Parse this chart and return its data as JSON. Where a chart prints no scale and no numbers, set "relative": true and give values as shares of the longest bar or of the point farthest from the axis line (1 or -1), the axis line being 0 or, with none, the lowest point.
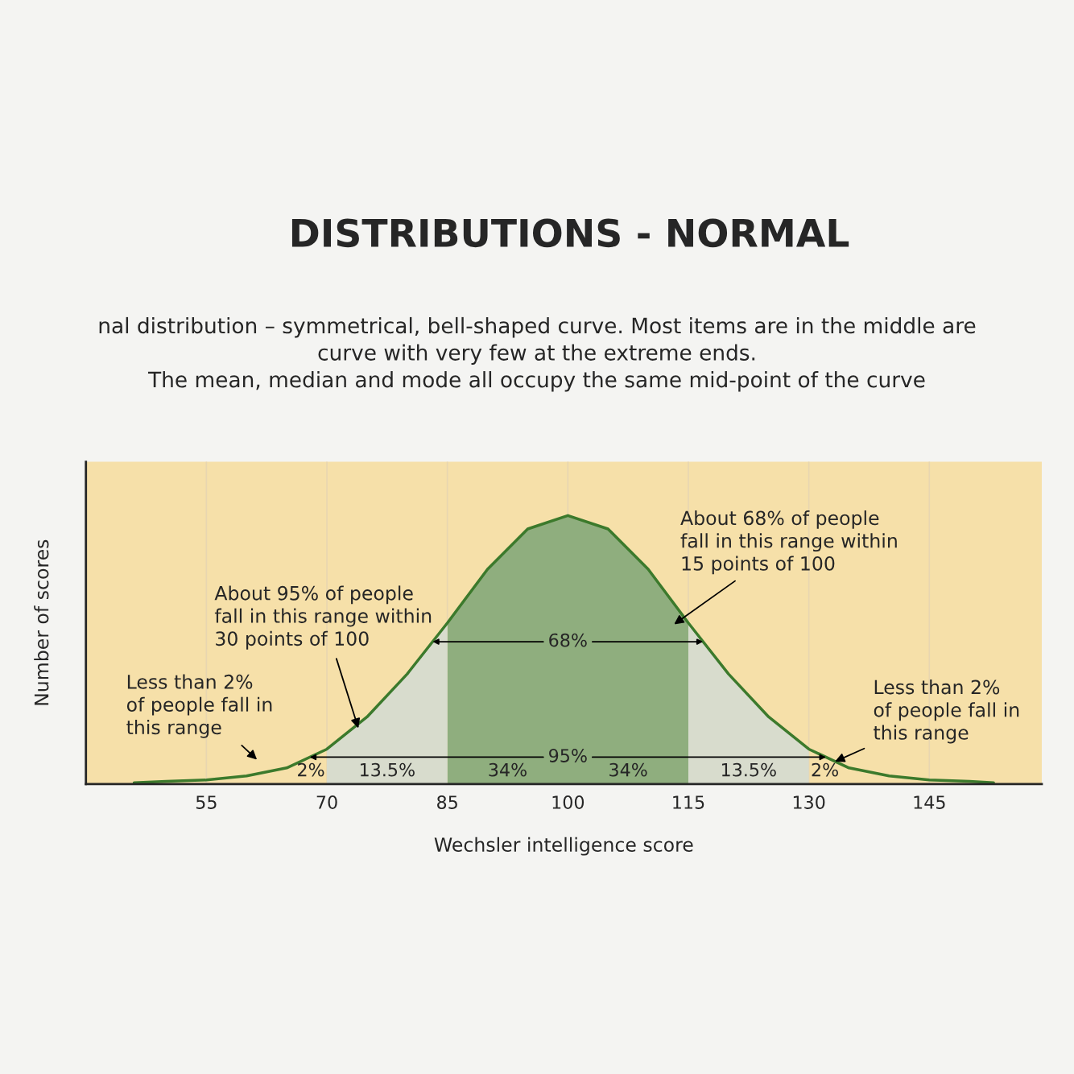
{
  "chart_data": {
    "type": "line",
    "title": "DISTRIBUTIONS - NORMAL",
    "subtitle": "nal distribution – symmetrical, bell-shaped curve. Most items are in the middle are\ncurve with very few at the extreme ends.\nThe mean, median and mode all occupy the same mid-point of the curve",
    "xlabel": "Wechsler intelligence score",
    "ylabel": "Number of scores",
    "relative": true,
    "xlim": [
      40,
      159
    ],
    "xticks": [
      55,
      70,
      85,
      100,
      115,
      130,
      145
    ],
    "grid": "x",
    "series": [
      {
        "type": "area",
        "color": "#8fae7e",
        "x": [
          85,
          90,
          95,
          100,
          105,
          110,
          115
        ],
        "values": [
          0.6,
          0.8,
          0.95,
          1,
          0.95,
          0.8,
          0.6
        ]
      },
      {
        "type": "area",
        "color": "#d8dccd",
        "x": [
          70,
          75,
          80,
          85
        ],
        "values": [
          0.13,
          0.25,
          0.41,
          0.6
        ]
      },
      {
        "type": "area",
        "color": "#d8dccd",
        "x": [
          115,
          120,
          125,
          130
        ],
        "values": [
          0.6,
          0.41,
          0.25,
          0.13
        ]
      },
      {
        "color": "#3c7a2c",
        "x": [
          46,
          50,
          55,
          60,
          65,
          70,
          75,
          80,
          85,
          90,
          95,
          100,
          105,
          110,
          115,
          120,
          125,
          130,
          135,
          140,
          145,
          150,
          153
        ],
        "values": [
          0.005,
          0.01,
          0.015,
          0.03,
          0.06,
          0.13,
          0.25,
          0.41,
          0.6,
          0.8,
          0.95,
          1,
          0.95,
          0.8,
          0.6,
          0.41,
          0.25,
          0.13,
          0.06,
          0.03,
          0.015,
          0.01,
          0.005
        ]
      }
    ],
    "annotations": [
      "68%",
      "95%",
      "2%",
      "13.5%",
      "34%",
      "34%",
      "13.5%",
      "2%",
      "Less than 2%\nof people fall in\nthis range",
      "About 95% of people\nfall in this range within\n30 points of 100",
      "About 68% of people\nfall in this range within\n15 points of 100",
      "Less than 2%\nof people fall in\nthis range"
    ]
  }
}
